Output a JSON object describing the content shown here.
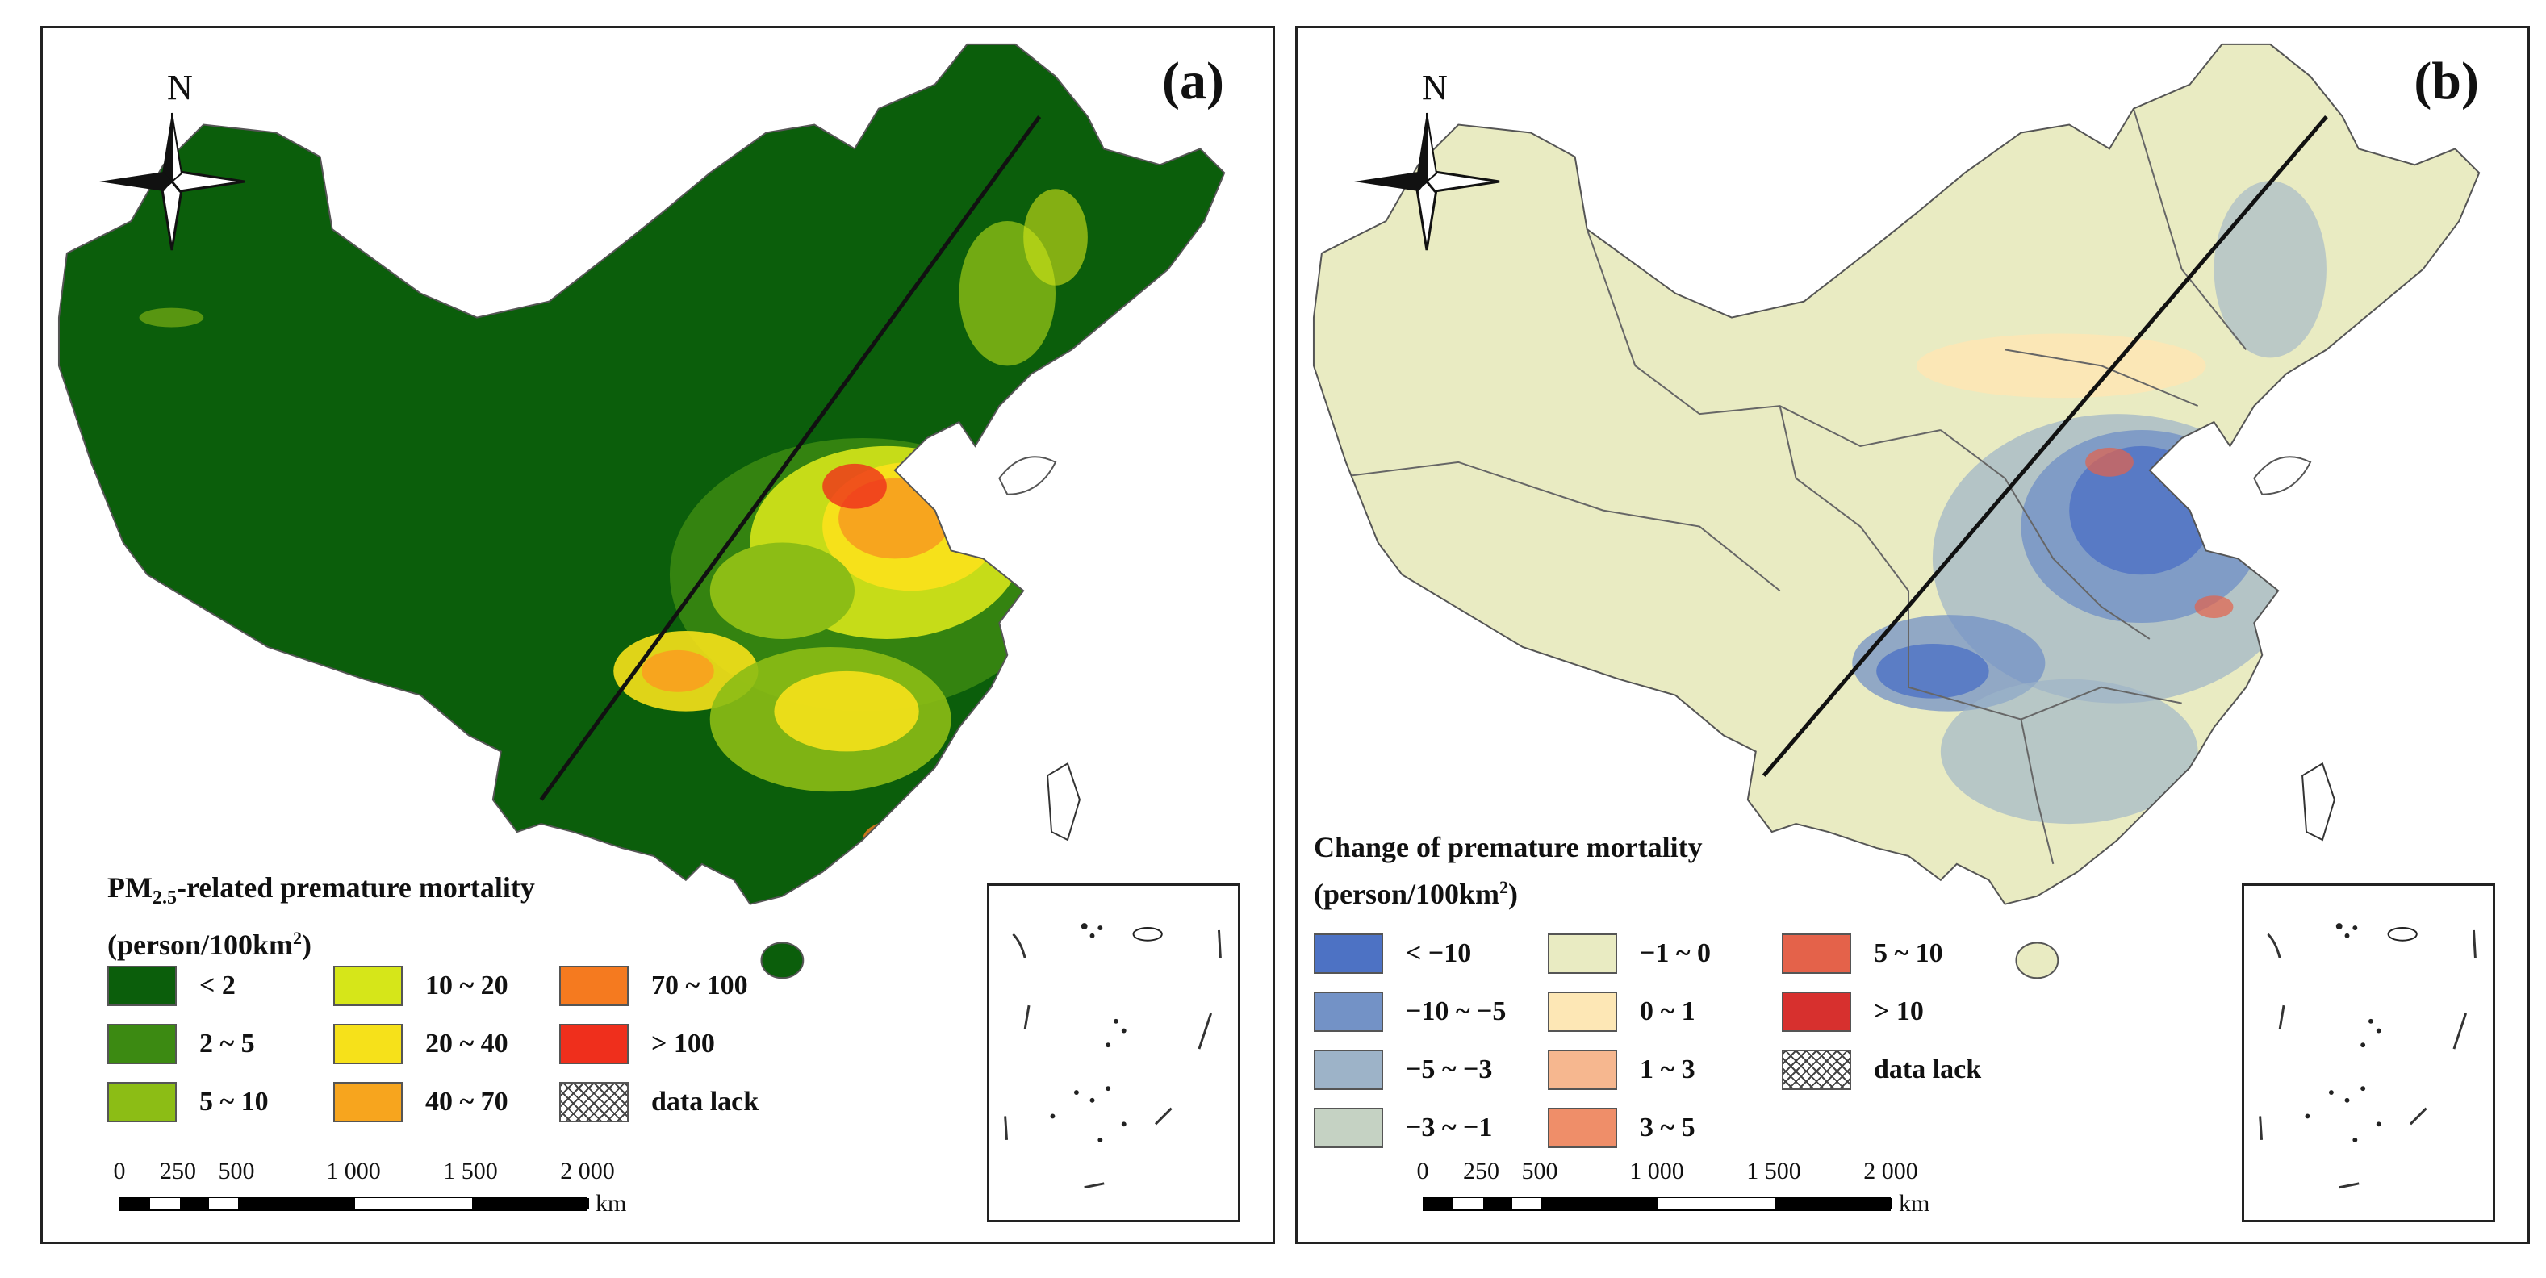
{
  "north_letter": "N",
  "panels": {
    "a": {
      "label": "(a)",
      "legend_title_prefix": "PM",
      "legend_title_sub": "2.5",
      "legend_title_suffix": "-related premature mortality",
      "legend_unit_prefix": "(person/100km",
      "legend_unit_sup": "2",
      "legend_unit_suffix": ")",
      "items": [
        {
          "label": "< 2",
          "color": "#0b5e0b"
        },
        {
          "label": "2 ~ 5",
          "color": "#3c8a12"
        },
        {
          "label": "5 ~ 10",
          "color": "#8cbd15"
        },
        {
          "label": "10 ~ 20",
          "color": "#d6e619"
        },
        {
          "label": "20 ~ 40",
          "color": "#f6e11a"
        },
        {
          "label": "40 ~ 70",
          "color": "#f7a51e"
        },
        {
          "label": "70 ~ 100",
          "color": "#f57a1f"
        },
        {
          "label": "> 100",
          "color": "#ef2f1c"
        },
        {
          "label": "data lack",
          "color": "hatch"
        }
      ]
    },
    "b": {
      "label": "(b)",
      "legend_title": "Change of premature mortality",
      "legend_unit_prefix": "(person/100km",
      "legend_unit_sup": "2",
      "legend_unit_suffix": ")",
      "items": [
        {
          "label": "< −10",
          "color": "#4d72c4"
        },
        {
          "label": "−10 ~ −5",
          "color": "#7392c6"
        },
        {
          "label": "−5 ~ −3",
          "color": "#9db3c8"
        },
        {
          "label": "−3 ~ −1",
          "color": "#c5d2c3"
        },
        {
          "label": "−1 ~ 0",
          "color": "#e9ebc2"
        },
        {
          "label": "0 ~ 1",
          "color": "#fde7b5"
        },
        {
          "label": "1 ~ 3",
          "color": "#f6b78f"
        },
        {
          "label": "3 ~ 5",
          "color": "#ef8e69"
        },
        {
          "label": "5 ~ 10",
          "color": "#e4624a"
        },
        {
          "label": "> 10",
          "color": "#d7302e"
        },
        {
          "label": "data lack",
          "color": "hatch"
        }
      ]
    }
  },
  "scale": {
    "ticks": [
      "0",
      "250",
      "500",
      "1 000",
      "1 500",
      "2 000"
    ],
    "unit": "km"
  },
  "map_colors": {
    "a_base": "#0b5e0b",
    "b_base": "#e9ebc2",
    "border": "#555555",
    "divide_line": "#111111"
  }
}
